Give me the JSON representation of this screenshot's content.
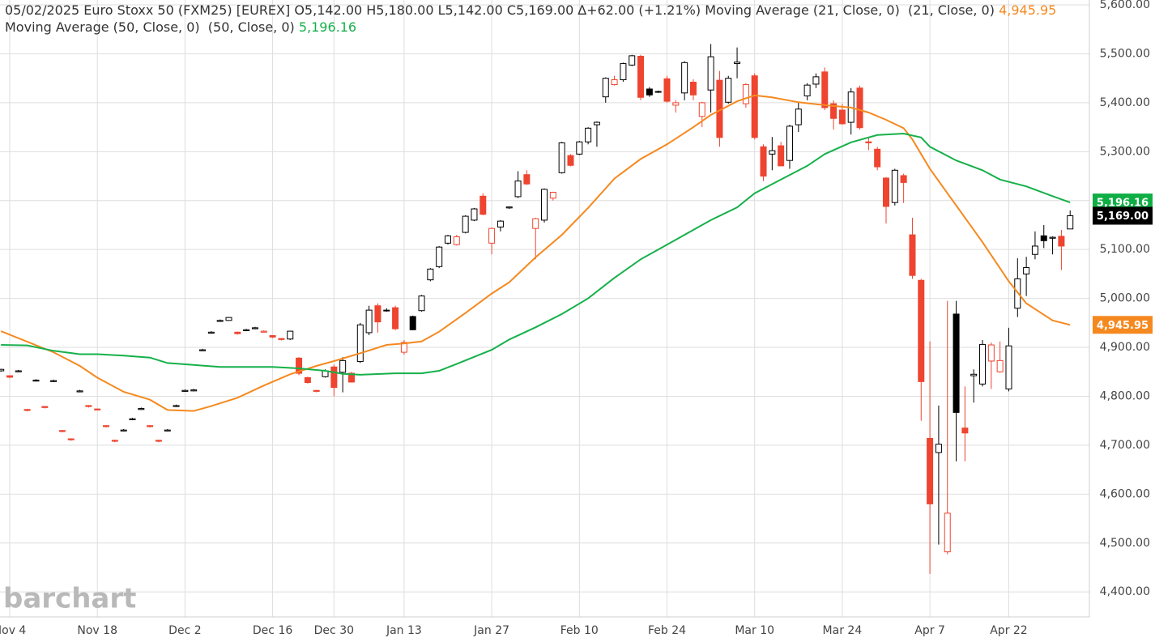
{
  "chart_data": {
    "type": "candlestick",
    "quote": "05/02/2025 Euro Stoxx 50 (FXM25) [EUREX] O5,142.00 H5,180.00 L5,142.00 C5,169.00 ∆+62.00 (+1.21%)",
    "last_close_label": "5,169.00",
    "last_close": 5169,
    "watermark": "barchart",
    "up_color": "#000000",
    "down_color": "#ee4430",
    "grid": true,
    "categories": [
      null,
      "Nov 4",
      null,
      null,
      null,
      null,
      null,
      null,
      null,
      null,
      null,
      "Nov 18",
      null,
      null,
      null,
      null,
      null,
      null,
      null,
      null,
      null,
      "Dec 2",
      null,
      null,
      null,
      null,
      null,
      null,
      null,
      null,
      null,
      "Dec 16",
      null,
      null,
      null,
      null,
      null,
      null,
      "Dec 30",
      null,
      null,
      null,
      null,
      null,
      null,
      null,
      "Jan 13",
      null,
      null,
      null,
      null,
      null,
      null,
      null,
      null,
      null,
      "Jan 27",
      null,
      null,
      null,
      null,
      null,
      null,
      null,
      null,
      null,
      "Feb 10",
      null,
      null,
      null,
      null,
      null,
      null,
      null,
      null,
      null,
      "Feb 24",
      null,
      null,
      null,
      null,
      null,
      null,
      null,
      null,
      null,
      "Mar 10",
      null,
      null,
      null,
      null,
      null,
      null,
      null,
      null,
      null,
      "Mar 24",
      null,
      null,
      null,
      null,
      null,
      null,
      null,
      null,
      null,
      "Apr 7",
      null,
      null,
      null,
      null,
      null,
      null,
      null,
      null,
      "Apr 22",
      null,
      null,
      null,
      null,
      null,
      null,
      null
    ],
    "open": [
      4852,
      4842,
      4850,
      4773,
      4831,
      4779,
      4830,
      4730,
      4713,
      4809,
      4781,
      4774,
      4740,
      4710,
      4729,
      4752,
      4773,
      4740,
      4710,
      4729,
      4779,
      4810,
      4811,
      4893,
      4929,
      4953,
      4955,
      4931,
      4934,
      4938,
      4931,
      4924,
      4918,
      4917,
      4878,
      4838,
      4812,
      4840,
      4860,
      4849,
      4847,
      4871,
      4930,
      4985,
      4975,
      4981,
      4890,
      4963,
      4975,
      5038,
      5065,
      5113,
      5110,
      5135,
      5160,
      5209,
      5113,
      5146,
      5185,
      5208,
      5253,
      5143,
      5160,
      5205,
      5257,
      5292,
      5295,
      5320,
      5355,
      5412,
      5437,
      5447,
      5477,
      5495,
      5428,
      5422,
      5449,
      5395,
      5420,
      5442,
      5372,
      5426,
      5446,
      5401,
      5480,
      5398,
      5455,
      5310,
      5295,
      5312,
      5282,
      5355,
      5414,
      5438,
      5463,
      5398,
      5385,
      5360,
      5430,
      5320,
      5305,
      5246,
      5196,
      5251,
      5130,
      5037,
      4714,
      4685,
      4482,
      4968,
      4735,
      4842,
      4825,
      4872,
      4850,
      4815,
      4980,
      5050,
      5090,
      5128,
      5123,
      5127,
      5142
    ],
    "high": [
      4856,
      4843,
      4854,
      4774,
      4835,
      4780,
      4834,
      4731,
      4714,
      4813,
      4782,
      4775,
      4741,
      4711,
      4733,
      4756,
      4777,
      4741,
      4711,
      4733,
      4783,
      4814,
      4815,
      4897,
      4933,
      4957,
      4962,
      4932,
      4938,
      4942,
      4935,
      4925,
      4919,
      4934,
      4880,
      4840,
      4813,
      4855,
      4865,
      4880,
      4850,
      4950,
      4985,
      4990,
      4980,
      4985,
      4915,
      4965,
      5007,
      5062,
      5107,
      5130,
      5130,
      5170,
      5185,
      5215,
      5145,
      5160,
      5188,
      5260,
      5262,
      5165,
      5225,
      5218,
      5320,
      5295,
      5322,
      5350,
      5362,
      5452,
      5455,
      5482,
      5498,
      5498,
      5432,
      5425,
      5455,
      5405,
      5485,
      5448,
      5402,
      5520,
      5465,
      5455,
      5513,
      5440,
      5460,
      5315,
      5330,
      5320,
      5355,
      5400,
      5440,
      5460,
      5472,
      5405,
      5398,
      5430,
      5435,
      5330,
      5310,
      5248,
      5265,
      5255,
      5165,
      5040,
      4912,
      4781,
      4995,
      4995,
      4820,
      4855,
      4915,
      4910,
      4912,
      4940,
      5082,
      5085,
      5137,
      5150,
      5127,
      5140,
      5180
    ],
    "low": [
      4850,
      4837,
      4849,
      4769,
      4830,
      4775,
      4829,
      4726,
      4709,
      4808,
      4777,
      4771,
      4736,
      4706,
      4728,
      4751,
      4772,
      4736,
      4706,
      4728,
      4778,
      4809,
      4810,
      4892,
      4928,
      4952,
      4954,
      4926,
      4933,
      4937,
      4930,
      4919,
      4914,
      4915,
      4843,
      4826,
      4808,
      4838,
      4800,
      4808,
      4828,
      4868,
      4925,
      4930,
      4973,
      4935,
      4885,
      4935,
      4973,
      5035,
      5062,
      5110,
      5108,
      5133,
      5158,
      5170,
      5090,
      5137,
      5183,
      5205,
      5232,
      5080,
      5155,
      5200,
      5255,
      5270,
      5293,
      5315,
      5310,
      5400,
      5435,
      5443,
      5475,
      5405,
      5412,
      5420,
      5400,
      5380,
      5405,
      5405,
      5350,
      5380,
      5310,
      5398,
      5450,
      5390,
      5325,
      5240,
      5262,
      5270,
      5265,
      5340,
      5405,
      5430,
      5385,
      5345,
      5355,
      5335,
      5345,
      5303,
      5262,
      5153,
      5190,
      5195,
      5040,
      4750,
      4437,
      4497,
      4477,
      4667,
      4667,
      4787,
      4820,
      4815,
      4848,
      4810,
      4962,
      5005,
      5080,
      5103,
      5090,
      5058,
      5142
    ],
    "close": [
      4855,
      4839,
      4852,
      4771,
      4833,
      4777,
      4832,
      4728,
      4711,
      4811,
      4779,
      4772,
      4738,
      4708,
      4731,
      4754,
      4775,
      4738,
      4708,
      4731,
      4781,
      4812,
      4813,
      4895,
      4931,
      4955,
      4961,
      4928,
      4936,
      4940,
      4933,
      4921,
      4916,
      4933,
      4847,
      4828,
      4810,
      4852,
      4818,
      4873,
      4829,
      4946,
      4976,
      4952,
      4976,
      4938,
      4910,
      4936,
      5005,
      5060,
      5105,
      5128,
      5126,
      5168,
      5183,
      5172,
      5143,
      5158,
      5187,
      5240,
      5234,
      5163,
      5223,
      5217,
      5318,
      5272,
      5320,
      5348,
      5360,
      5450,
      5447,
      5480,
      5496,
      5411,
      5416,
      5423,
      5403,
      5400,
      5482,
      5416,
      5400,
      5494,
      5329,
      5450,
      5483,
      5437,
      5329,
      5250,
      5302,
      5271,
      5352,
      5387,
      5436,
      5453,
      5390,
      5368,
      5357,
      5422,
      5349,
      5318,
      5269,
      5188,
      5262,
      5237,
      5047,
      4830,
      4580,
      4702,
      4561,
      4767,
      4725,
      4845,
      4906,
      4905,
      4873,
      4903,
      5040,
      5063,
      5107,
      5118,
      5125,
      5107,
      5169
    ],
    "series": [
      {
        "name": "Moving Average (21, Close, 0)  (21, Close, 0)",
        "color": "#f5891f",
        "tag_color": "#f5891f",
        "last_label": "4,945.95",
        "x": [
          0,
          6,
          9,
          11,
          14,
          17,
          19,
          22,
          24,
          27,
          30,
          33,
          36,
          38,
          41,
          44,
          46,
          48,
          50,
          53,
          56,
          58,
          61,
          64,
          67,
          70,
          73,
          76,
          79,
          81,
          84,
          86,
          88,
          91,
          94,
          97,
          99,
          101,
          103,
          104,
          106,
          108,
          110,
          112,
          115,
          117,
          120,
          122
        ],
        "values": [
          4933,
          4890,
          4862,
          4838,
          4809,
          4793,
          4772,
          4770,
          4780,
          4797,
          4822,
          4845,
          4862,
          4872,
          4888,
          4905,
          4908,
          4912,
          4932,
          4970,
          5010,
          5033,
          5084,
          5130,
          5185,
          5245,
          5285,
          5315,
          5350,
          5375,
          5403,
          5415,
          5411,
          5401,
          5395,
          5390,
          5380,
          5365,
          5348,
          5325,
          5265,
          5215,
          5165,
          5115,
          5035,
          4990,
          4955,
          4945.95
        ]
      },
      {
        "name": "Moving Average (50, Close, 0)  (50, Close, 0)",
        "color": "#16b04a",
        "tag_color": "#0fae45",
        "last_label": "5,196.16",
        "x": [
          0,
          3,
          6,
          9,
          11,
          14,
          17,
          19,
          22,
          25,
          28,
          31,
          34,
          37,
          39,
          41,
          45,
          48,
          50,
          52,
          56,
          58,
          61,
          64,
          67,
          70,
          73,
          75,
          78,
          81,
          84,
          86,
          89,
          92,
          94,
          97,
          100,
          103,
          105,
          106,
          109,
          112,
          114,
          117,
          120,
          122
        ],
        "values": [
          4905,
          4904,
          4893,
          4886,
          4886,
          4883,
          4879,
          4868,
          4864,
          4860,
          4860,
          4860,
          4857,
          4852,
          4846,
          4844,
          4847,
          4847,
          4852,
          4866,
          4895,
          4916,
          4941,
          4968,
          5000,
          5042,
          5080,
          5100,
          5130,
          5160,
          5186,
          5215,
          5243,
          5271,
          5295,
          5319,
          5334,
          5337,
          5329,
          5310,
          5282,
          5262,
          5243,
          5229,
          5209,
          5196.16
        ]
      }
    ],
    "ylim": [
      4349,
      5610
    ],
    "yticks": [
      {
        "value": 4400,
        "label": "4,400.00"
      },
      {
        "value": 4500,
        "label": "4,500.00"
      },
      {
        "value": 4600,
        "label": "4,600.00"
      },
      {
        "value": 4700,
        "label": "4,700.00"
      },
      {
        "value": 4800,
        "label": "4,800.00"
      },
      {
        "value": 4900,
        "label": "4,900.00"
      },
      {
        "value": 5000,
        "label": "5,000.00"
      },
      {
        "value": 5100,
        "label": "5,100.00"
      },
      {
        "value": 5200,
        "label": "5,200.00"
      },
      {
        "value": 5300,
        "label": "5,300.00"
      },
      {
        "value": 5400,
        "label": "5,400.00"
      },
      {
        "value": 5500,
        "label": "5,500.00"
      },
      {
        "value": 5600,
        "label": "5,600.00"
      }
    ]
  }
}
